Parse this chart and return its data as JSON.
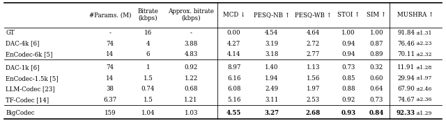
{
  "col_headers": [
    "",
    "#Params. (M)",
    "Bitrate\n(kbps)",
    "Approx. bitrate\n(kbps)",
    "MCD ↓",
    "PESQ-NB ↑",
    "PESQ-WB ↑",
    "STOI ↑",
    "SIM ↑",
    "MUSHRA ↑"
  ],
  "rows": [
    [
      "GT",
      "-",
      "16",
      "-",
      "0.00",
      "4.54",
      "4.64",
      "1.00",
      "1.00",
      "91.84±1.31"
    ],
    [
      "DAC-4k [6]",
      "74",
      "4",
      "3.88",
      "4.27",
      "3.19",
      "2.72",
      "0.94",
      "0.87",
      "76.46±2.23"
    ],
    [
      "EnCodec-6k [5]",
      "14",
      "6",
      "4.83",
      "4.14",
      "3.18",
      "2.77",
      "0.94",
      "0.89",
      "70.11±2.32"
    ],
    [
      "DAC-1k [6]",
      "74",
      "1",
      "0.92",
      "8.97",
      "1.40",
      "1.13",
      "0.73",
      "0.32",
      "11.91±1.28"
    ],
    [
      "EnCodec-1.5k [5]",
      "14",
      "1.5",
      "1.22",
      "6.16",
      "1.94",
      "1.56",
      "0.85",
      "0.60",
      "29.94±1.97"
    ],
    [
      "LLM-Codec [23]",
      "38",
      "0.74",
      "0.68",
      "6.08",
      "2.49",
      "1.97",
      "0.88",
      "0.64",
      "67.90±2.46"
    ],
    [
      "TF-Codec [14]",
      "6.37",
      "1.5",
      "1.21",
      "5.16",
      "3.11",
      "2.53",
      "0.92",
      "0.73",
      "74.67±2.36"
    ],
    [
      "BigCodec",
      "159",
      "1.04",
      "1.03",
      "4.55",
      "3.27",
      "2.68",
      "0.93",
      "0.84",
      "92.33±1.29"
    ]
  ],
  "bold_row": 7,
  "bold_cols_in_bold_row": [
    4,
    5,
    6,
    7,
    8,
    9
  ],
  "background_color": "#ffffff",
  "font_size": 6.2,
  "font_size_small": 5.5,
  "lw_thick": 1.2,
  "lw_thin": 0.6
}
